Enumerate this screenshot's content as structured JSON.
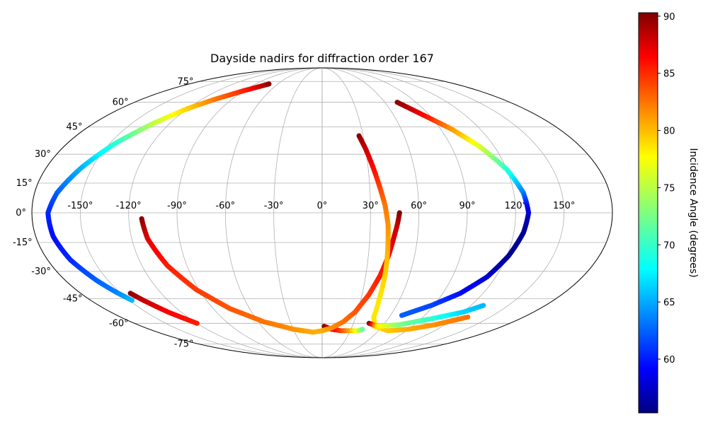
{
  "chart_data": {
    "type": "scatter",
    "projection": "mollweide",
    "title": "Dayside nadirs for diffraction order 167",
    "lon_ticks": [
      "-150°",
      "-120°",
      "-90°",
      "-60°",
      "-30°",
      "0°",
      "30°",
      "60°",
      "90°",
      "120°",
      "150°"
    ],
    "lat_ticks": [
      "75°",
      "60°",
      "45°",
      "30°",
      "15°",
      "0°",
      "-15°",
      "-30°",
      "-45°",
      "-60°",
      "-75°"
    ],
    "lon_tick_values": [
      -150,
      -120,
      -90,
      -60,
      -30,
      0,
      30,
      60,
      90,
      120,
      150
    ],
    "lat_tick_values": [
      75,
      60,
      45,
      30,
      15,
      0,
      -15,
      -30,
      -45,
      -60,
      -75
    ],
    "grid": true,
    "colorbar": {
      "label": "Incidence Angle (degrees)",
      "colormap": "jet",
      "vmin": 55.3,
      "vmax": 90.3,
      "ticks": [
        60,
        65,
        70,
        75,
        80,
        85,
        90
      ],
      "tick_labels": [
        "60",
        "65",
        "70",
        "75",
        "80",
        "85",
        "90"
      ],
      "position": "right"
    },
    "tracks": [
      {
        "points": [
          [
            -72,
            73,
            90
          ],
          [
            -90,
            68,
            85
          ],
          [
            -107,
            62,
            82
          ],
          [
            -120,
            56,
            79
          ],
          [
            -133,
            47,
            75
          ],
          [
            -146,
            36,
            70
          ],
          [
            -157,
            23,
            66
          ],
          [
            -166,
            10,
            63
          ],
          [
            -170,
            0,
            61
          ],
          [
            -169,
            -12,
            60
          ],
          [
            -165,
            -24,
            61
          ],
          [
            -158,
            -35,
            63
          ],
          [
            -153,
            -41,
            64
          ],
          [
            -148,
            -46,
            66
          ]
        ]
      },
      {
        "points": [
          [
            -143,
            -42,
            90
          ],
          [
            -139,
            -46,
            88
          ],
          [
            -131,
            -53,
            86
          ],
          [
            -120,
            -60,
            85
          ]
        ]
      },
      {
        "points": [
          [
            -112,
            -3,
            90
          ],
          [
            -110,
            -13,
            87
          ],
          [
            -103,
            -27,
            85
          ],
          [
            -92,
            -40,
            84
          ],
          [
            -76,
            -51,
            83
          ],
          [
            -55,
            -59,
            82
          ],
          [
            -30,
            -64,
            81
          ],
          [
            -10,
            -66,
            80
          ],
          [
            0,
            -65,
            80
          ]
        ]
      },
      {
        "points": [
          [
            2,
            -62,
            90
          ],
          [
            10,
            -64,
            87
          ],
          [
            20,
            -65,
            84
          ],
          [
            30,
            -65,
            80
          ],
          [
            38,
            -65,
            76
          ],
          [
            42,
            -64,
            72
          ]
        ]
      },
      {
        "points": [
          [
            0,
            -65,
            80
          ],
          [
            10,
            -63,
            81
          ],
          [
            20,
            -59,
            82
          ],
          [
            28,
            -53,
            83
          ],
          [
            35,
            -43,
            84
          ],
          [
            40,
            -32,
            85
          ],
          [
            43,
            -22,
            86
          ],
          [
            45,
            -13,
            87
          ],
          [
            47,
            -5,
            88
          ],
          [
            48,
            0,
            90
          ]
        ]
      },
      {
        "points": [
          [
            27,
            40,
            90
          ],
          [
            30,
            33,
            88
          ],
          [
            33,
            24,
            86
          ],
          [
            36,
            14,
            84
          ],
          [
            39,
            4,
            82
          ],
          [
            41,
            -6,
            81
          ],
          [
            42,
            -18,
            80
          ],
          [
            43,
            -30,
            79
          ],
          [
            44,
            -45,
            78
          ],
          [
            46,
            -56,
            78
          ],
          [
            52,
            -62,
            78
          ],
          [
            70,
            -65,
            79
          ],
          [
            90,
            -64,
            80
          ],
          [
            110,
            -61,
            81
          ],
          [
            130,
            -56,
            82
          ]
        ]
      },
      {
        "points": [
          [
            45,
            -60,
            90
          ],
          [
            55,
            -62,
            78
          ],
          [
            75,
            -61,
            73
          ],
          [
            100,
            -57,
            70
          ],
          [
            120,
            -53,
            67
          ],
          [
            130,
            -49,
            66
          ]
        ]
      },
      {
        "points": [
          [
            72,
            60,
            90
          ],
          [
            85,
            52,
            86
          ],
          [
            98,
            44,
            81
          ],
          [
            110,
            34,
            76
          ],
          [
            120,
            22,
            70
          ],
          [
            126,
            10,
            64
          ],
          [
            128,
            0,
            58
          ],
          [
            126,
            -10,
            56
          ],
          [
            121,
            -22,
            56
          ],
          [
            114,
            -33,
            58
          ],
          [
            103,
            -42,
            60
          ],
          [
            88,
            -49,
            62
          ],
          [
            70,
            -55,
            63
          ]
        ]
      }
    ]
  }
}
